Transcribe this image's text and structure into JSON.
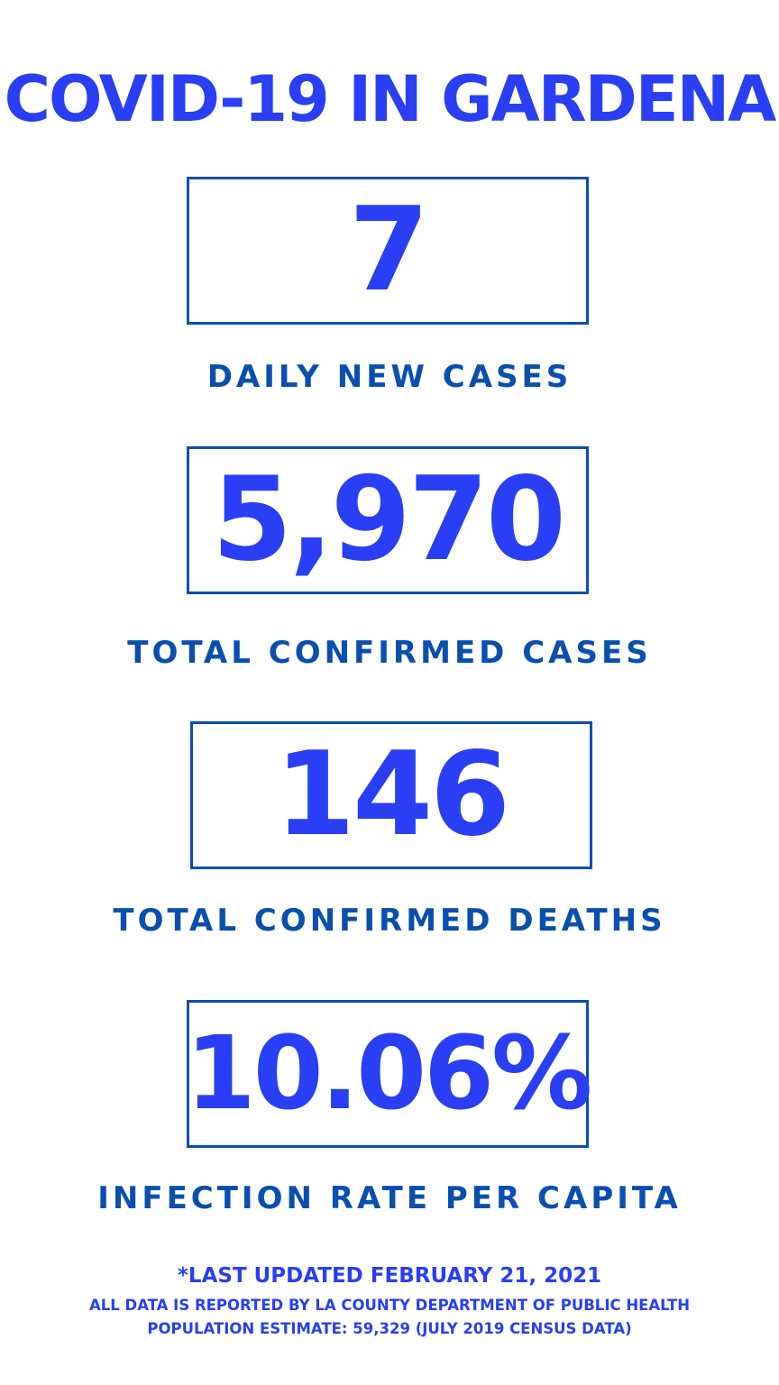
{
  "title": "COVID-19 IN GARDENA",
  "stats": [
    {
      "value": "7",
      "label": "DAILY NEW CASES"
    },
    {
      "value": "5,970",
      "label": "TOTAL CONFIRMED CASES"
    },
    {
      "value": "146",
      "label": "TOTAL CONFIRMED DEATHS"
    },
    {
      "value": "10.06%",
      "label": "INFECTION RATE PER CAPITA"
    }
  ],
  "footer": {
    "updated": "*LAST UPDATED FEBRUARY 21, 2021",
    "source": "ALL DATA IS REPORTED BY LA COUNTY DEPARTMENT OF PUBLIC HEALTH",
    "population": "POPULATION ESTIMATE: 59,329 (JULY 2019 CENSUS DATA)"
  },
  "colors": {
    "accent": "#2a3ff5",
    "dark_blue": "#0a4fb0"
  }
}
